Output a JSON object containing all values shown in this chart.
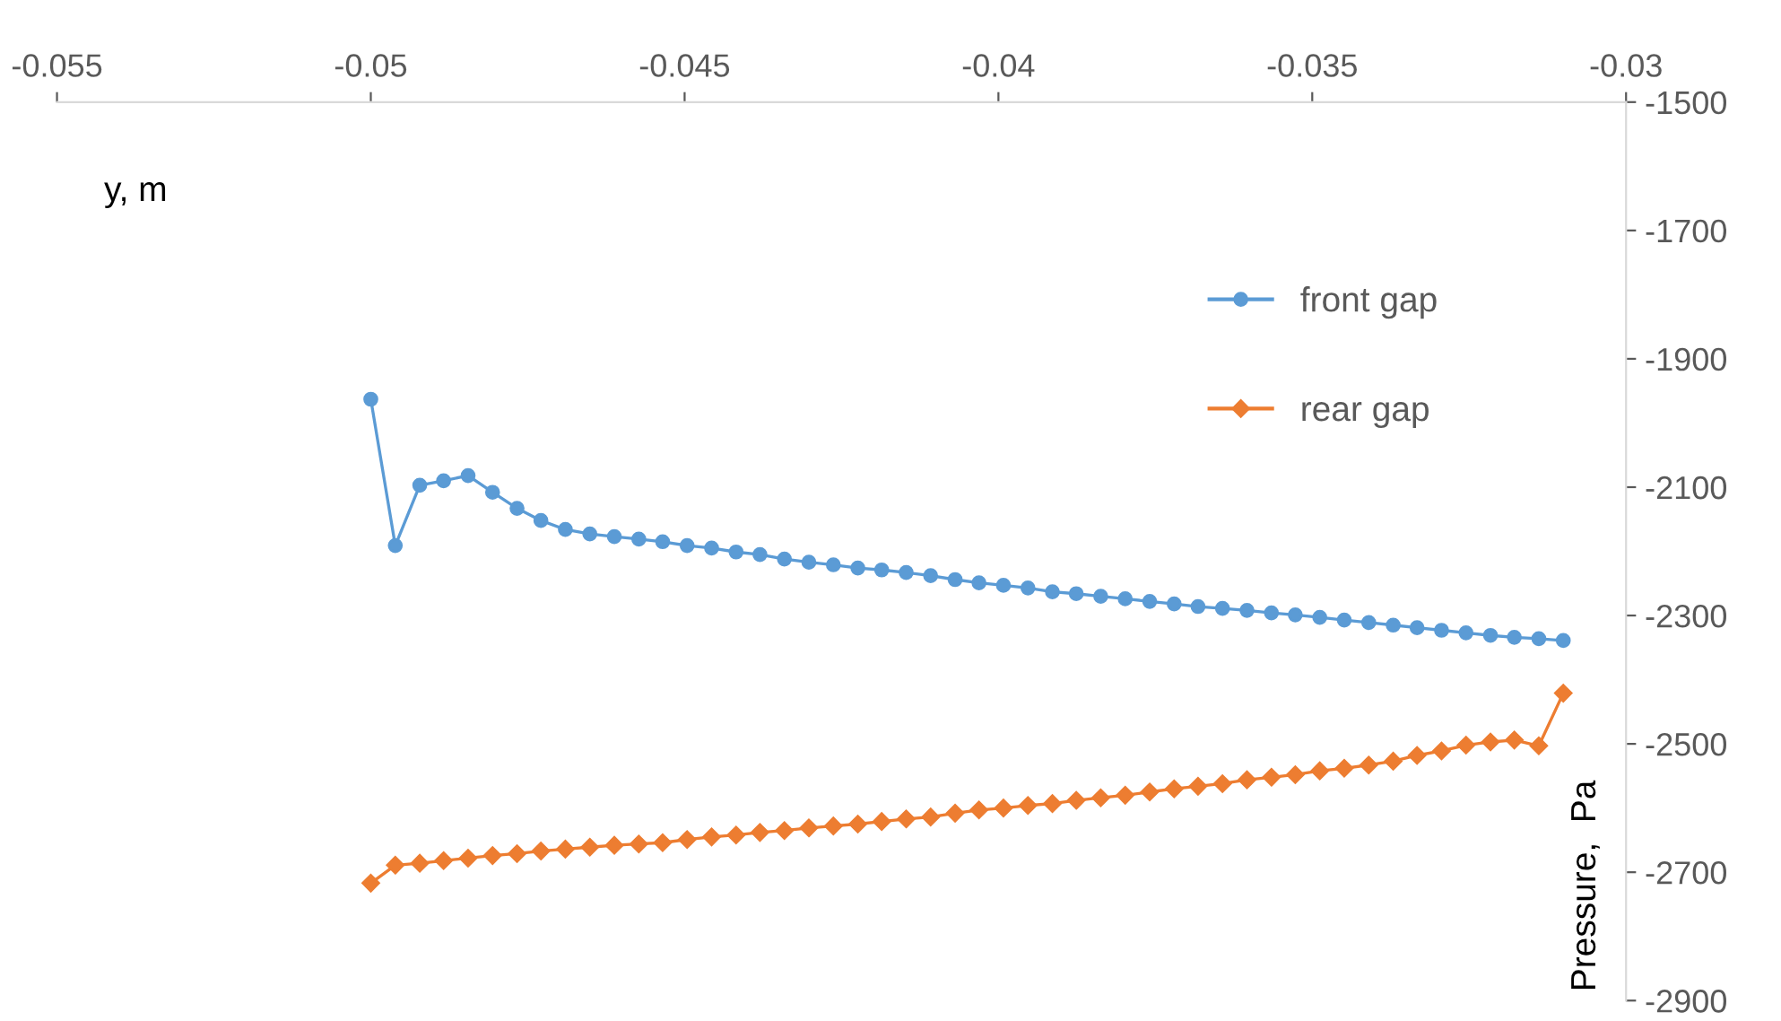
{
  "chart_data": {
    "type": "line",
    "xlabel": "y, m",
    "ylabel": "Pressure,  Pa",
    "xlim": [
      -0.055,
      -0.03
    ],
    "xticks": [
      -0.055,
      -0.05,
      -0.045,
      -0.04,
      -0.035,
      -0.03
    ],
    "ylim": [
      -2900,
      -1500
    ],
    "yticks": [
      -2900,
      -2700,
      -2500,
      -2300,
      -2100,
      -1900,
      -1700,
      -1500
    ],
    "x": [
      -0.05,
      -0.04961,
      -0.04922,
      -0.04884,
      -0.04845,
      -0.04806,
      -0.04767,
      -0.04729,
      -0.0469,
      -0.04651,
      -0.04612,
      -0.04573,
      -0.04535,
      -0.04496,
      -0.04457,
      -0.04418,
      -0.0438,
      -0.04341,
      -0.04302,
      -0.04263,
      -0.04224,
      -0.04186,
      -0.04147,
      -0.04108,
      -0.04069,
      -0.04031,
      -0.03992,
      -0.03953,
      -0.03914,
      -0.03876,
      -0.03837,
      -0.03798,
      -0.03759,
      -0.0372,
      -0.03682,
      -0.03643,
      -0.03604,
      -0.03565,
      -0.03527,
      -0.03488,
      -0.03449,
      -0.0341,
      -0.03371,
      -0.03333,
      -0.03294,
      -0.03255,
      -0.03216,
      -0.03178,
      -0.03139,
      -0.031
    ],
    "grid": false,
    "legend": "top right",
    "series": [
      {
        "name": "front gap",
        "color": "#5b9bd5",
        "marker": "circle",
        "values": [
          -1963,
          -2191,
          -2097,
          -2090,
          -2082,
          -2108,
          -2133,
          -2152,
          -2166,
          -2173,
          -2177,
          -2181,
          -2185,
          -2191,
          -2195,
          -2201,
          -2205,
          -2212,
          -2217,
          -2221,
          -2226,
          -2229,
          -2233,
          -2238,
          -2244,
          -2249,
          -2253,
          -2257,
          -2263,
          -2266,
          -2270,
          -2274,
          -2278,
          -2282,
          -2286,
          -2289,
          -2292,
          -2296,
          -2299,
          -2303,
          -2307,
          -2311,
          -2315,
          -2319,
          -2323,
          -2327,
          -2331,
          -2334,
          -2336,
          -2339
        ]
      },
      {
        "name": "rear gap",
        "color": "#ed7d31",
        "marker": "diamond",
        "values": [
          -2717,
          -2689,
          -2686,
          -2682,
          -2678,
          -2674,
          -2671,
          -2667,
          -2664,
          -2661,
          -2658,
          -2656,
          -2654,
          -2649,
          -2645,
          -2642,
          -2638,
          -2635,
          -2631,
          -2628,
          -2625,
          -2621,
          -2617,
          -2614,
          -2608,
          -2603,
          -2600,
          -2596,
          -2593,
          -2588,
          -2584,
          -2580,
          -2575,
          -2570,
          -2566,
          -2562,
          -2556,
          -2552,
          -2548,
          -2542,
          -2538,
          -2533,
          -2527,
          -2518,
          -2511,
          -2502,
          -2497,
          -2494,
          -2503,
          -2421
        ]
      }
    ]
  }
}
